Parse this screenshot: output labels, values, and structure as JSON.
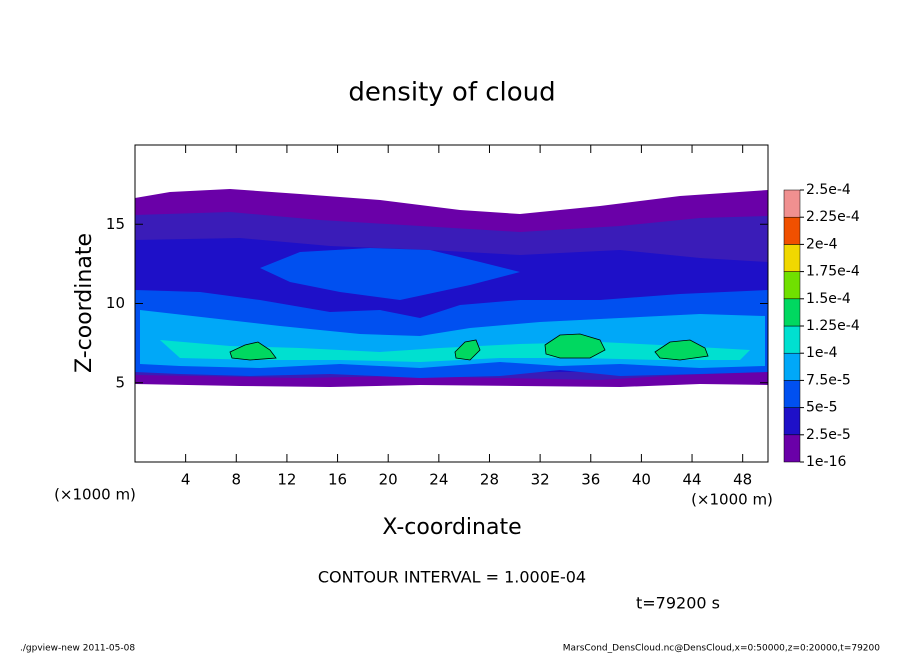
{
  "chart_data": {
    "type": "contour",
    "title": "density of cloud",
    "xlabel": "X-coordinate",
    "ylabel": "Z-coordinate",
    "x_unit_left": "(×1000 m)",
    "x_unit_right": "(×1000 m)",
    "xlim": [
      0,
      50
    ],
    "ylim": [
      0,
      20
    ],
    "xticks": [
      4,
      8,
      12,
      16,
      20,
      24,
      28,
      32,
      36,
      40,
      44,
      48
    ],
    "yticks": [
      5,
      10,
      15
    ],
    "colorbar": {
      "levels": [
        1e-16,
        {
          "value": 2.5e-05,
          "label": "2.5e-5"
        },
        {
          "value": 5e-05,
          "label": "5e-5"
        },
        {
          "value": 7.5e-05,
          "label": "7.5e-5"
        },
        {
          "value": 0.0001,
          "label": "1e-4"
        },
        {
          "value": 0.000125,
          "label": "1.25e-4"
        },
        {
          "value": 0.00015,
          "label": "1.5e-4"
        },
        {
          "value": 0.000175,
          "label": "1.75e-4"
        },
        {
          "value": 0.0002,
          "label": "2e-4"
        },
        {
          "value": 0.000225,
          "label": "2.25e-4"
        },
        {
          "value": 0.00025,
          "label": "2.5e-4"
        }
      ],
      "colors": [
        "#6a00a8",
        "#1e10c8",
        "#0050f0",
        "#00a8f8",
        "#00e0d0",
        "#00d860",
        "#70e000",
        "#f0d800",
        "#f05000",
        "#f09090"
      ]
    },
    "contour_interval": "CONTOUR INTERVAL = 1.000E-04",
    "time_label": "t=79200 s",
    "footer_left": "./gpview-new   2011-05-08",
    "footer_right": "MarsCond_DensCloud.nc@DensCloud,x=0:50000,z=0:20000,t=79200"
  }
}
